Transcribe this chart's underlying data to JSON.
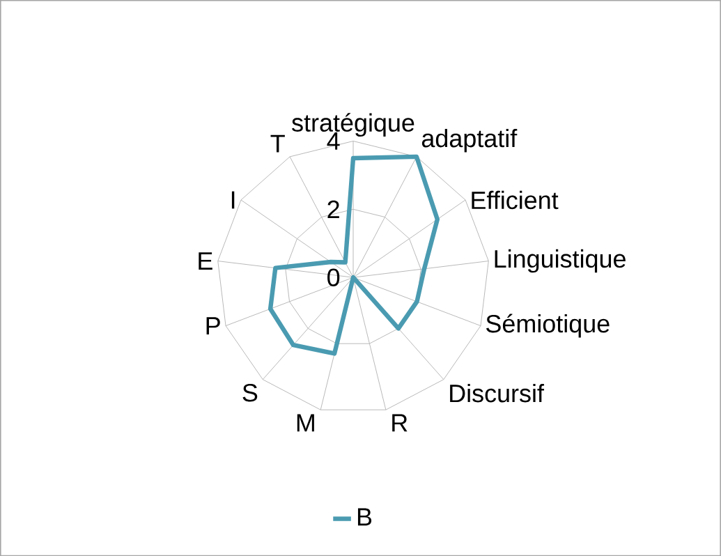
{
  "chart_data": {
    "type": "radar",
    "categories": [
      "stratégique",
      "adaptatif",
      "Efficient",
      "Linguistique",
      "Sémiotique",
      "Discursif",
      "R",
      "M",
      "S",
      "P",
      "E",
      "I",
      "T"
    ],
    "series": [
      {
        "name": "B",
        "color": "#4a9bb1",
        "values": [
          3.5,
          4,
          3,
          2.1,
          2,
          2,
          0,
          2.3,
          2.65,
          2.6,
          2.3,
          0.8,
          0.5
        ]
      }
    ],
    "ylim": [
      0,
      4
    ],
    "yticks": [
      0,
      2,
      4
    ],
    "grid": true,
    "legend": "bottom"
  }
}
